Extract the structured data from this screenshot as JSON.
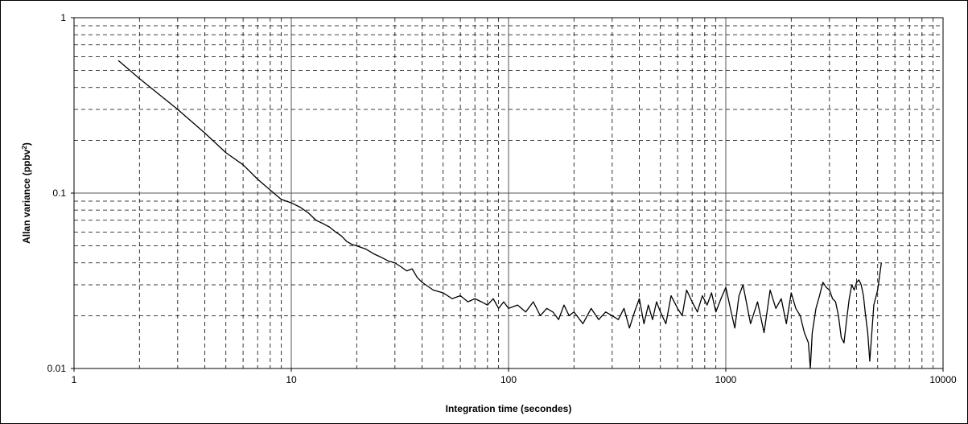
{
  "chart_data": {
    "type": "line",
    "title": "",
    "xlabel": "Integration time (secondes)",
    "ylabel": "Allan variance (ppbv",
    "ylabel_sup": "2",
    "ylabel_end": ")",
    "x_scale": "log",
    "y_scale": "log",
    "xlim": [
      1,
      10000
    ],
    "ylim": [
      0.01,
      1
    ],
    "x_tick_labels": [
      "1",
      "10",
      "100",
      "1000",
      "10000"
    ],
    "y_tick_labels": [
      "0.01",
      "0.1",
      "1"
    ],
    "grid": "major solid, minor dashed",
    "legend": "none",
    "line_color": "#000000",
    "series": [
      {
        "x": [
          1.6,
          2,
          3,
          4,
          5,
          6,
          7,
          8,
          9,
          10,
          11,
          12,
          13,
          14,
          15,
          16,
          17,
          18,
          19,
          20,
          22,
          24,
          26,
          28,
          30,
          32,
          34,
          36,
          38,
          40,
          45,
          50,
          55,
          60,
          65,
          70,
          75,
          80,
          85,
          90,
          95,
          100,
          110,
          120,
          130,
          140,
          150,
          160,
          170,
          180,
          190,
          200,
          220,
          240,
          260,
          280,
          300,
          320,
          340,
          360,
          380,
          400,
          420,
          440,
          460,
          480,
          500,
          530,
          560,
          600,
          630,
          660,
          700,
          740,
          780,
          820,
          860,
          900,
          950,
          1000,
          1050,
          1100,
          1150,
          1200,
          1300,
          1400,
          1500,
          1600,
          1700,
          1800,
          1900,
          2000,
          2100,
          2200,
          2300,
          2400,
          2450,
          2500,
          2600,
          2700,
          2800,
          2900,
          3000,
          3100,
          3200,
          3300,
          3400,
          3500,
          3600,
          3700,
          3800,
          3900,
          4000,
          4100,
          4200,
          4300,
          4400,
          4500,
          4600,
          4800,
          5000,
          5200
        ],
        "y": [
          0.57,
          0.45,
          0.3,
          0.22,
          0.17,
          0.145,
          0.12,
          0.104,
          0.092,
          0.088,
          0.083,
          0.077,
          0.07,
          0.067,
          0.064,
          0.06,
          0.057,
          0.053,
          0.051,
          0.05,
          0.048,
          0.045,
          0.043,
          0.041,
          0.04,
          0.038,
          0.036,
          0.037,
          0.033,
          0.031,
          0.028,
          0.027,
          0.025,
          0.026,
          0.024,
          0.025,
          0.024,
          0.023,
          0.025,
          0.022,
          0.024,
          0.022,
          0.023,
          0.021,
          0.024,
          0.02,
          0.022,
          0.021,
          0.019,
          0.023,
          0.02,
          0.021,
          0.018,
          0.022,
          0.019,
          0.021,
          0.02,
          0.019,
          0.022,
          0.017,
          0.021,
          0.025,
          0.018,
          0.023,
          0.019,
          0.024,
          0.021,
          0.018,
          0.026,
          0.022,
          0.02,
          0.028,
          0.024,
          0.021,
          0.026,
          0.023,
          0.027,
          0.021,
          0.025,
          0.029,
          0.022,
          0.017,
          0.026,
          0.03,
          0.018,
          0.024,
          0.016,
          0.028,
          0.022,
          0.025,
          0.018,
          0.027,
          0.022,
          0.02,
          0.016,
          0.014,
          0.01,
          0.016,
          0.022,
          0.026,
          0.031,
          0.029,
          0.028,
          0.025,
          0.024,
          0.02,
          0.015,
          0.014,
          0.019,
          0.025,
          0.03,
          0.028,
          0.031,
          0.032,
          0.03,
          0.026,
          0.02,
          0.016,
          0.011,
          0.023,
          0.028,
          0.04
        ]
      }
    ]
  }
}
